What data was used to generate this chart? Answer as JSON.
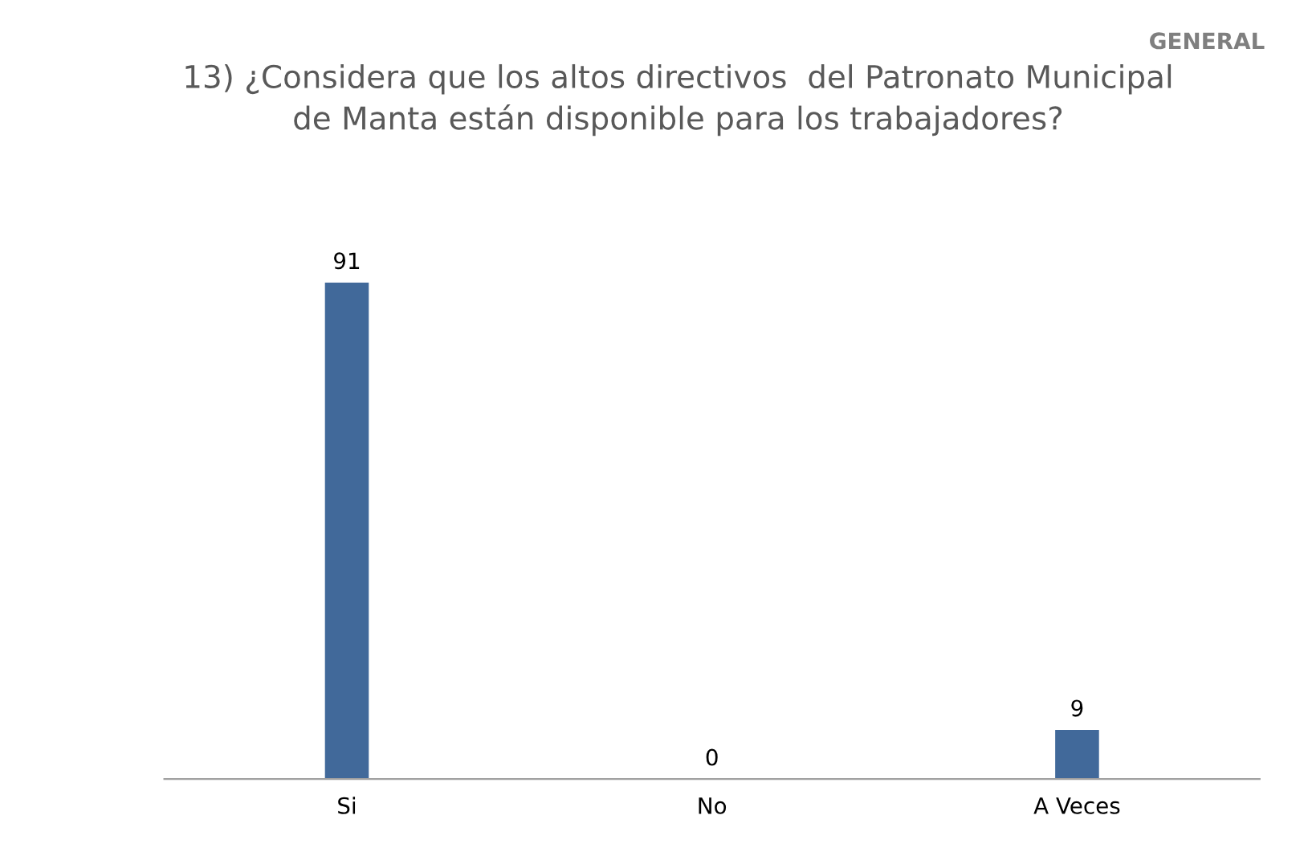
{
  "chart_data": {
    "type": "bar",
    "title": "13) ¿Considera que los altos directivos  del Patronato Municipal\nde Manta están disponible para los trabajadores?",
    "annotations": [
      "GENERAL"
    ],
    "categories": [
      "Si",
      "No",
      "A Veces"
    ],
    "values": [
      91,
      0,
      9
    ],
    "color": "#41699a",
    "data_labels": true
  }
}
